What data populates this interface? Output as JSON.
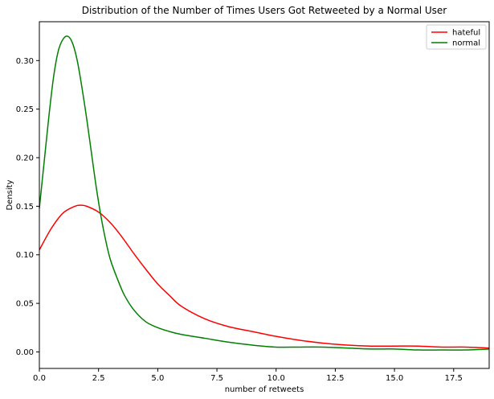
{
  "chart_data": {
    "type": "line",
    "title": "Distribution of the Number of Times Users Got Retweeted by a Normal User",
    "xlabel": "number of retweets",
    "ylabel": "Density",
    "xlim": [
      0,
      19
    ],
    "ylim": [
      -0.017,
      0.34
    ],
    "xticks": [
      0,
      2.5,
      5,
      7.5,
      10,
      12.5,
      15,
      17.5
    ],
    "xtick_labels": [
      "0.0",
      "2.5",
      "5.0",
      "7.5",
      "10.0",
      "12.5",
      "15.0",
      "17.5"
    ],
    "yticks": [
      0,
      0.05,
      0.1,
      0.15,
      0.2,
      0.25,
      0.3
    ],
    "ytick_labels": [
      "0.00",
      "0.05",
      "0.10",
      "0.15",
      "0.20",
      "0.25",
      "0.30"
    ],
    "grid": false,
    "legend_position": "top-right",
    "series": [
      {
        "name": "hateful",
        "color": "#ff0000",
        "x": [
          0,
          0.5,
          1.0,
          1.5,
          1.75,
          2.0,
          2.5,
          3.0,
          3.5,
          4.0,
          4.5,
          5.0,
          5.5,
          6.0,
          7.0,
          8.0,
          9.0,
          10.0,
          11.0,
          12.0,
          13.0,
          14.0,
          15.0,
          16.0,
          17.0,
          18.0,
          19.0
        ],
        "y": [
          0.105,
          0.127,
          0.143,
          0.15,
          0.151,
          0.15,
          0.144,
          0.133,
          0.118,
          0.101,
          0.085,
          0.07,
          0.058,
          0.047,
          0.034,
          0.026,
          0.021,
          0.016,
          0.012,
          0.009,
          0.007,
          0.006,
          0.006,
          0.006,
          0.005,
          0.005,
          0.004
        ]
      },
      {
        "name": "normal",
        "color": "#008000",
        "x": [
          0,
          0.2,
          0.4,
          0.6,
          0.8,
          1.0,
          1.2,
          1.4,
          1.6,
          1.8,
          2.0,
          2.2,
          2.4,
          2.6,
          2.8,
          3.0,
          3.3,
          3.6,
          4.0,
          4.5,
          5.0,
          5.5,
          6.0,
          7.0,
          8.0,
          9.0,
          10.0,
          11.0,
          12.0,
          13.0,
          14.0,
          15.0,
          16.0,
          17.0,
          18.0,
          19.0
        ],
        "y": [
          0.148,
          0.195,
          0.242,
          0.283,
          0.31,
          0.322,
          0.325,
          0.318,
          0.3,
          0.272,
          0.24,
          0.205,
          0.17,
          0.14,
          0.115,
          0.095,
          0.075,
          0.058,
          0.043,
          0.031,
          0.025,
          0.021,
          0.018,
          0.014,
          0.01,
          0.007,
          0.005,
          0.005,
          0.005,
          0.004,
          0.003,
          0.003,
          0.002,
          0.002,
          0.002,
          0.003
        ]
      }
    ]
  }
}
